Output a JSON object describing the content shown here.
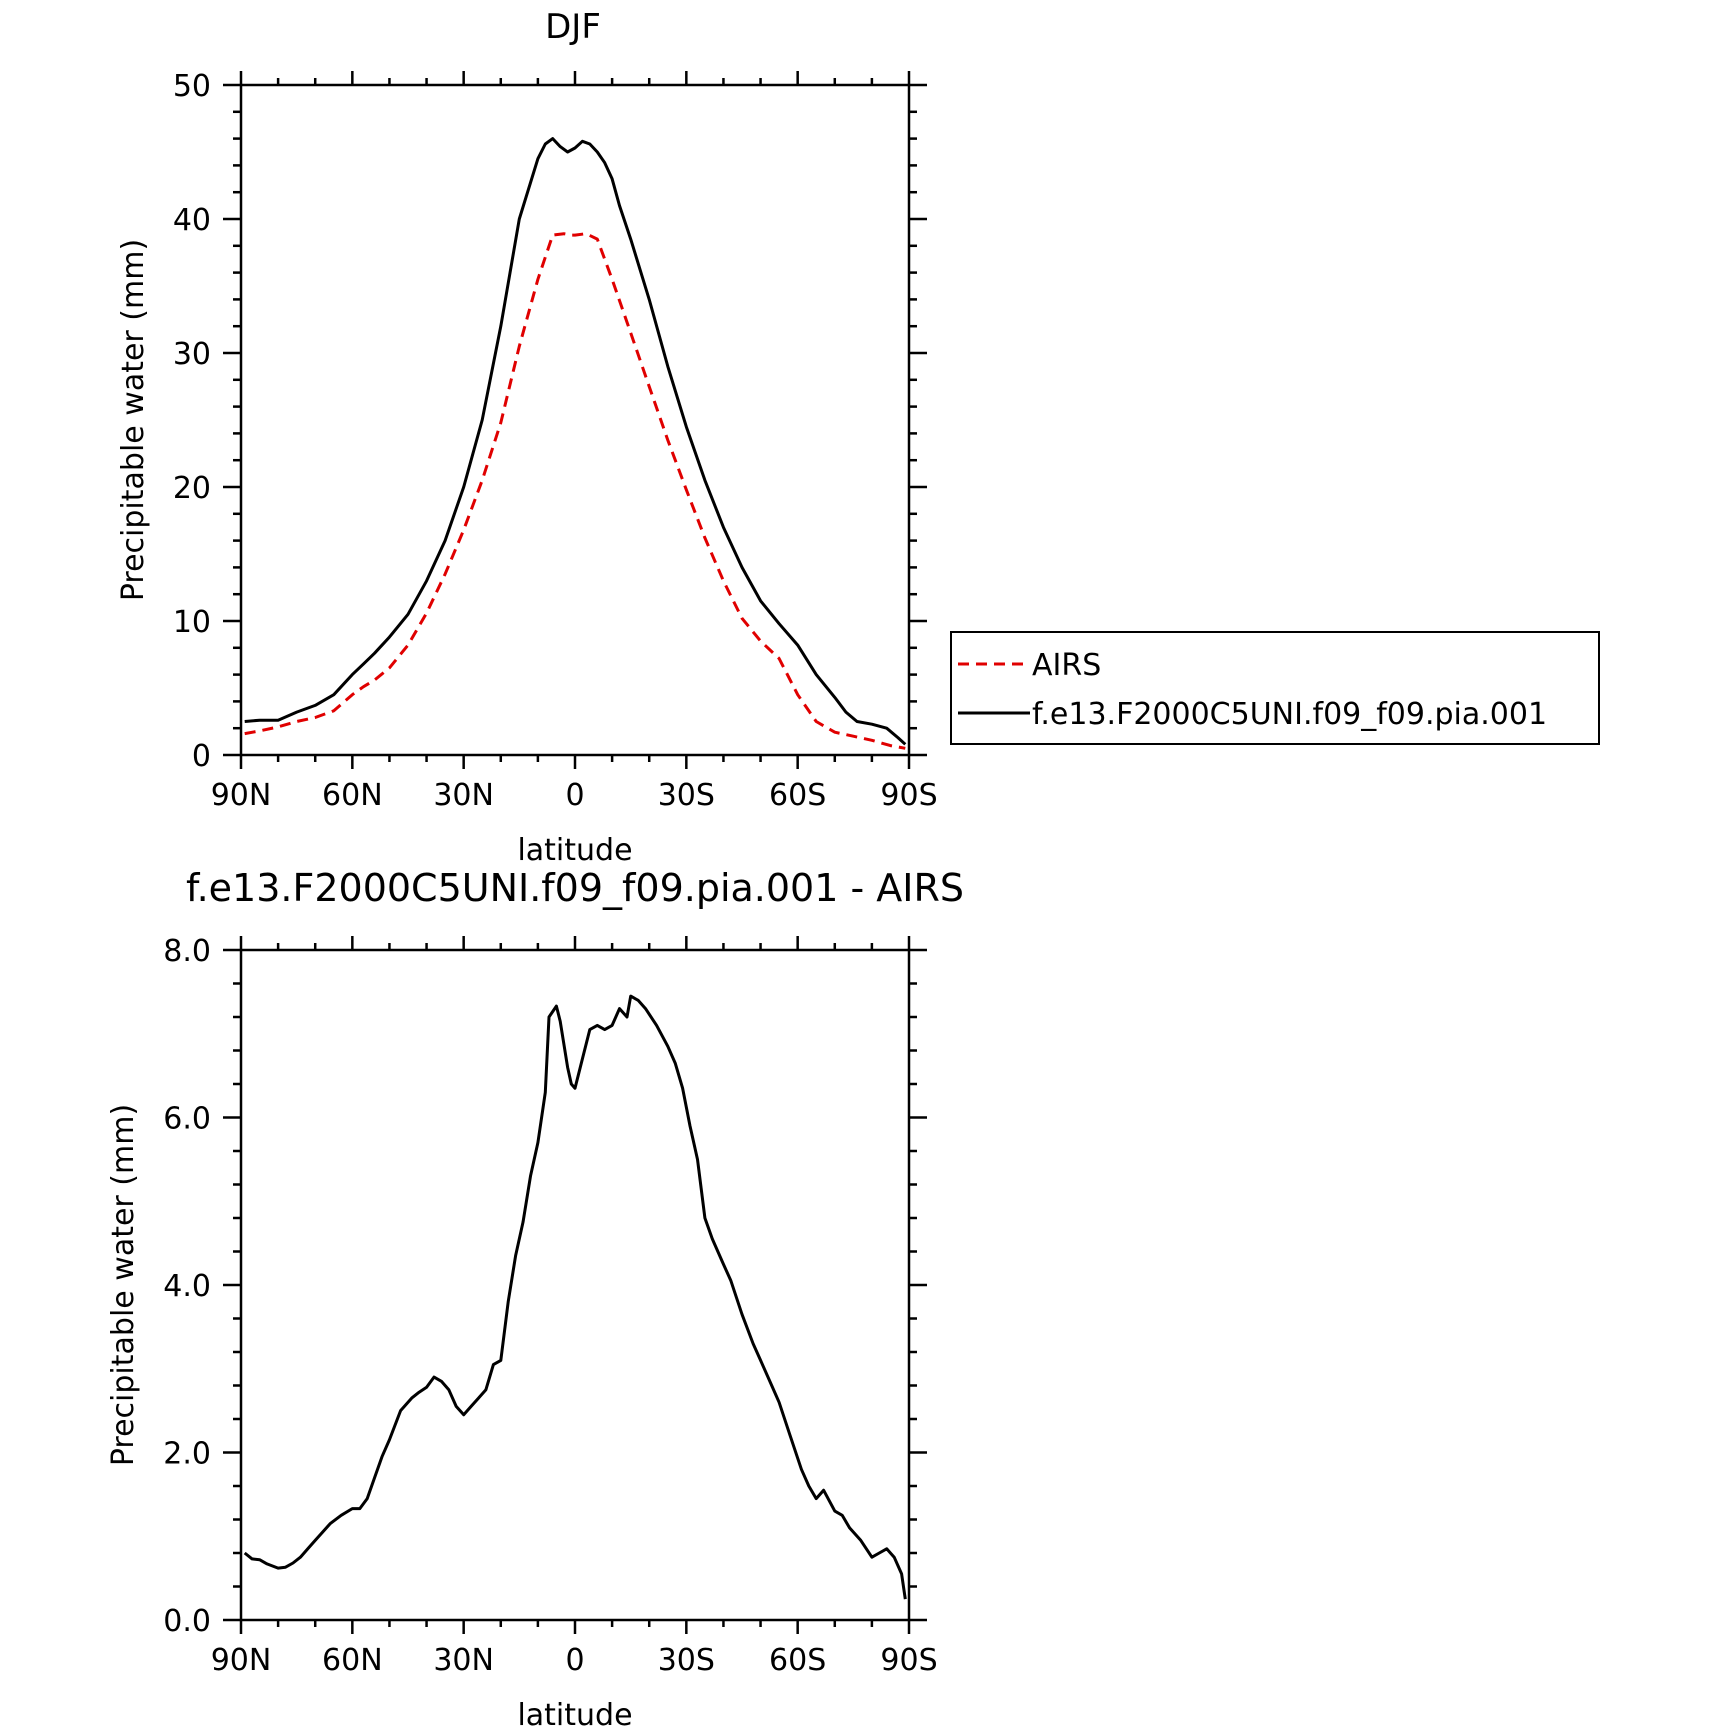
{
  "chart_data": [
    {
      "type": "line",
      "title": "DJF",
      "xlabel": "latitude",
      "ylabel": "Precipitable water (mm)",
      "xlim": [
        90,
        -90
      ],
      "ylim": [
        0,
        50
      ],
      "xticks": [
        90,
        60,
        30,
        0,
        -30,
        -60,
        -90
      ],
      "xtick_labels": [
        "90N",
        "60N",
        "30N",
        "0",
        "30S",
        "60S",
        "90S"
      ],
      "yticks": [
        0,
        10,
        20,
        30,
        40,
        50
      ],
      "ytick_labels": [
        "0",
        "10",
        "20",
        "30",
        "40",
        "50"
      ],
      "legend_position": "right",
      "series": [
        {
          "name": "AIRS",
          "color": "#e00000",
          "dash": "dashed",
          "x": [
            89,
            85,
            80,
            75,
            70,
            65,
            60,
            57,
            54,
            50,
            45,
            40,
            35,
            30,
            25,
            20,
            15,
            10,
            6,
            3,
            1,
            0,
            -3,
            -6,
            -10,
            -15,
            -20,
            -25,
            -30,
            -35,
            -40,
            -45,
            -50,
            -55,
            -60,
            -65,
            -70,
            -75,
            -80,
            -85,
            -89
          ],
          "y": [
            1.6,
            1.8,
            2.1,
            2.5,
            2.8,
            3.3,
            4.5,
            5.1,
            5.6,
            6.5,
            8.2,
            10.6,
            13.5,
            16.8,
            20.5,
            24.8,
            30.5,
            35.5,
            38.8,
            38.9,
            38.8,
            38.8,
            38.9,
            38.5,
            35.5,
            31.5,
            27.5,
            23.5,
            19.8,
            16.2,
            13.0,
            10.2,
            8.5,
            7.2,
            4.5,
            2.5,
            1.7,
            1.4,
            1.1,
            0.7,
            0.5
          ]
        },
        {
          "name": "f.e13.F2000C5UNI.f09_f09.pia.001",
          "color": "#000000",
          "dash": "solid",
          "x": [
            89,
            85,
            80,
            75,
            70,
            65,
            60,
            57,
            54,
            50,
            45,
            40,
            35,
            30,
            25,
            20,
            15,
            10,
            8,
            6,
            4,
            2,
            0,
            -2,
            -4,
            -6,
            -8,
            -10,
            -12,
            -15,
            -20,
            -25,
            -30,
            -35,
            -40,
            -45,
            -50,
            -55,
            -60,
            -65,
            -70,
            -73,
            -76,
            -80,
            -84,
            -87,
            -89
          ],
          "y": [
            2.5,
            2.6,
            2.6,
            3.2,
            3.7,
            4.5,
            6.0,
            6.8,
            7.6,
            8.8,
            10.5,
            13.0,
            16.0,
            20.0,
            25.0,
            32.0,
            40.0,
            44.5,
            45.6,
            46.0,
            45.4,
            45.0,
            45.3,
            45.8,
            45.6,
            45.0,
            44.2,
            43.0,
            41.0,
            38.5,
            34.0,
            29.0,
            24.5,
            20.5,
            17.0,
            14.0,
            11.5,
            9.8,
            8.2,
            6.0,
            4.3,
            3.2,
            2.5,
            2.3,
            2.0,
            1.3,
            0.8
          ]
        }
      ]
    },
    {
      "type": "line",
      "title": "f.e13.F2000C5UNI.f09_f09.pia.001 - AIRS",
      "xlabel": "latitude",
      "ylabel": "Precipitable water (mm)",
      "xlim": [
        90,
        -90
      ],
      "ylim": [
        0,
        8
      ],
      "xticks": [
        90,
        60,
        30,
        0,
        -30,
        -60,
        -90
      ],
      "xtick_labels": [
        "90N",
        "60N",
        "30N",
        "0",
        "30S",
        "60S",
        "90S"
      ],
      "yticks": [
        0,
        2,
        4,
        6,
        8
      ],
      "ytick_labels": [
        "0.0",
        "2.0",
        "4.0",
        "6.0",
        "8.0"
      ],
      "series": [
        {
          "color": "#000000",
          "dash": "solid",
          "x": [
            89,
            87,
            85,
            83,
            80,
            78,
            76,
            74,
            72,
            70,
            68,
            66,
            63,
            60,
            58,
            56,
            54,
            52,
            50,
            47,
            44,
            42,
            40,
            38,
            36,
            34,
            32,
            30,
            28,
            26,
            24,
            22,
            20,
            18,
            16,
            14,
            12,
            10,
            8,
            7,
            5,
            4,
            2,
            1,
            0,
            -2,
            -4,
            -6,
            -8,
            -10,
            -12,
            -14,
            -15,
            -17,
            -19,
            -22,
            -25,
            -27,
            -29,
            -31,
            -33,
            -35,
            -37,
            -40,
            -42,
            -45,
            -48,
            -50,
            -53,
            -55,
            -58,
            -61,
            -63,
            -65,
            -67,
            -70,
            -72,
            -74,
            -77,
            -80,
            -82,
            -84,
            -86,
            -88,
            -89
          ],
          "y": [
            0.8,
            0.73,
            0.72,
            0.67,
            0.62,
            0.63,
            0.68,
            0.75,
            0.85,
            0.95,
            1.05,
            1.15,
            1.25,
            1.33,
            1.33,
            1.45,
            1.7,
            1.95,
            2.15,
            2.5,
            2.65,
            2.72,
            2.78,
            2.9,
            2.85,
            2.75,
            2.55,
            2.45,
            2.55,
            2.65,
            2.75,
            3.05,
            3.1,
            3.8,
            4.35,
            4.75,
            5.3,
            5.7,
            6.3,
            7.2,
            7.33,
            7.15,
            6.6,
            6.4,
            6.35,
            6.7,
            7.05,
            7.1,
            7.05,
            7.1,
            7.3,
            7.2,
            7.45,
            7.4,
            7.3,
            7.1,
            6.85,
            6.65,
            6.35,
            5.9,
            5.5,
            4.8,
            4.55,
            4.25,
            4.05,
            3.65,
            3.3,
            3.1,
            2.8,
            2.6,
            2.2,
            1.8,
            1.6,
            1.45,
            1.55,
            1.3,
            1.25,
            1.1,
            0.95,
            0.75,
            0.8,
            0.85,
            0.75,
            0.55,
            0.25
          ]
        }
      ]
    }
  ]
}
